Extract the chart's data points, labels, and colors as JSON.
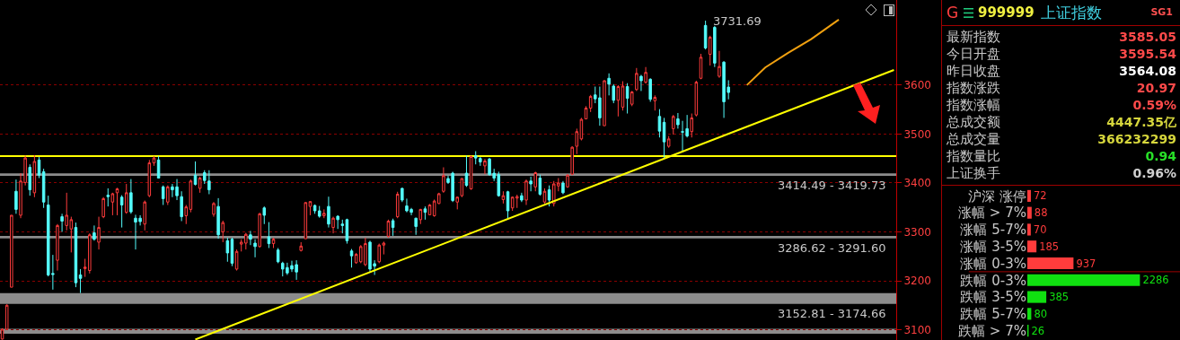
{
  "chart_data": [
    {
      "type": "candlestick",
      "categories": [
        null,
        null,
        null,
        null,
        null,
        null,
        null,
        null,
        null,
        null,
        null,
        null,
        null,
        null,
        null,
        null,
        null,
        null,
        null,
        null,
        null,
        null,
        null,
        null,
        null,
        null,
        null,
        null,
        null,
        null,
        null,
        null,
        null,
        null,
        null,
        null,
        null,
        null,
        null,
        null,
        null,
        null,
        null,
        null,
        null,
        null,
        null,
        null,
        null,
        null,
        null,
        null,
        null,
        null,
        null,
        null,
        null,
        null,
        null,
        null,
        null,
        null,
        null,
        null,
        null,
        null,
        null,
        null,
        null,
        null,
        null,
        null,
        null,
        null,
        null,
        null,
        null,
        null,
        null,
        null,
        null,
        null,
        null,
        null,
        null,
        null,
        null,
        null,
        null,
        null,
        null,
        null,
        null,
        null,
        null,
        null,
        null,
        null,
        null,
        null,
        null,
        null,
        null,
        null,
        null,
        null,
        null,
        null,
        null,
        null,
        null,
        null,
        null,
        null,
        null,
        null,
        null,
        null,
        null,
        null,
        null,
        null,
        null,
        null,
        null,
        null,
        null,
        null,
        null,
        null,
        null,
        null,
        null,
        null,
        null,
        null,
        null,
        null,
        null,
        null,
        null,
        null,
        null,
        null,
        null,
        null,
        null,
        null,
        null,
        null,
        null,
        null,
        null,
        null,
        null,
        null,
        null,
        null,
        null,
        null,
        null,
        null,
        null,
        null,
        null,
        null,
        null,
        null,
        null,
        null,
        null,
        null,
        null,
        null,
        null,
        null,
        null,
        null,
        null,
        null,
        null,
        null,
        null,
        null,
        null,
        null,
        null,
        null,
        null,
        null,
        null,
        null,
        null,
        null,
        null
      ],
      "ohlc": [
        [
          3081,
          3103,
          3080,
          3101
        ],
        [
          3101,
          3152,
          3100,
          3150
        ],
        [
          3187,
          3334,
          3187,
          3334
        ],
        [
          3383,
          3407,
          3337,
          3346
        ],
        [
          3334,
          3420,
          3328,
          3404
        ],
        [
          3401,
          3456,
          3395,
          3451
        ],
        [
          3432,
          3438,
          3374,
          3386
        ],
        [
          3380,
          3457,
          3371,
          3444
        ],
        [
          3447,
          3453,
          3410,
          3416
        ],
        [
          3423,
          3429,
          3349,
          3361
        ],
        [
          3355,
          3374,
          3209,
          3212
        ],
        [
          3215,
          3253,
          3182,
          3213
        ],
        [
          3242,
          3316,
          3221,
          3313
        ],
        [
          3331,
          3337,
          3300,
          3322
        ],
        [
          3313,
          3380,
          3303,
          3334
        ],
        [
          3306,
          3331,
          3258,
          3325
        ],
        [
          3309,
          3319,
          3187,
          3196
        ],
        [
          3212,
          3224,
          3175,
          3205
        ],
        [
          3225,
          3245,
          3208,
          3228
        ],
        [
          3221,
          3297,
          3215,
          3294
        ],
        [
          3298,
          3313,
          3282,
          3285
        ],
        [
          3279,
          3331,
          3264,
          3309
        ],
        [
          3331,
          3371,
          3328,
          3368
        ],
        [
          3375,
          3389,
          3352,
          3372
        ],
        [
          3361,
          3380,
          3334,
          3378
        ],
        [
          3380,
          3390,
          3334,
          3388
        ],
        [
          3371,
          3375,
          3309,
          3355
        ],
        [
          3340,
          3398,
          3337,
          3380
        ],
        [
          3380,
          3408,
          3337,
          3341
        ],
        [
          3328,
          3335,
          3264,
          3320
        ],
        [
          3328,
          3334,
          3313,
          3321
        ],
        [
          3316,
          3364,
          3303,
          3361
        ],
        [
          3374,
          3447,
          3371,
          3441
        ],
        [
          3441,
          3455,
          3435,
          3451
        ],
        [
          3447,
          3455,
          3409,
          3410
        ],
        [
          3392,
          3395,
          3355,
          3368
        ],
        [
          3361,
          3395,
          3355,
          3392
        ],
        [
          3392,
          3398,
          3371,
          3386
        ],
        [
          3392,
          3408,
          3365,
          3374
        ],
        [
          3372,
          3383,
          3322,
          3331
        ],
        [
          3333,
          3355,
          3316,
          3351
        ],
        [
          3346,
          3407,
          3340,
          3404
        ],
        [
          3416,
          3444,
          3395,
          3397
        ],
        [
          3389,
          3413,
          3380,
          3410
        ],
        [
          3421,
          3426,
          3398,
          3405
        ],
        [
          3404,
          3426,
          3377,
          3386
        ],
        [
          3336,
          3361,
          3331,
          3358
        ],
        [
          3352,
          3369,
          3286,
          3294
        ],
        [
          3300,
          3323,
          3279,
          3319
        ],
        [
          3282,
          3288,
          3239,
          3257
        ],
        [
          3285,
          3288,
          3230,
          3236
        ],
        [
          3224,
          3264,
          3221,
          3260
        ],
        [
          3275,
          3285,
          3260,
          3279
        ],
        [
          3277,
          3298,
          3264,
          3295
        ],
        [
          3294,
          3302,
          3273,
          3285
        ],
        [
          3277,
          3285,
          3248,
          3270
        ],
        [
          3270,
          3339,
          3268,
          3337
        ],
        [
          3349,
          3352,
          3316,
          3334
        ],
        [
          3290,
          3320,
          3267,
          3276
        ],
        [
          3276,
          3288,
          3267,
          3285
        ],
        [
          3263,
          3267,
          3236,
          3239
        ],
        [
          3236,
          3239,
          3209,
          3224
        ],
        [
          3227,
          3237,
          3212,
          3216
        ],
        [
          3231,
          3241,
          3218,
          3224
        ],
        [
          3233,
          3242,
          3202,
          3218
        ],
        [
          3262,
          3279,
          3260,
          3271
        ],
        [
          3286,
          3360,
          3286,
          3360
        ],
        [
          3352,
          3362,
          3334,
          3362
        ],
        [
          3354,
          3356,
          3337,
          3343
        ],
        [
          3343,
          3353,
          3329,
          3332
        ],
        [
          3333,
          3346,
          3328,
          3338
        ],
        [
          3352,
          3372,
          3309,
          3316
        ],
        [
          3309,
          3331,
          3297,
          3328
        ],
        [
          3332,
          3334,
          3306,
          3325
        ],
        [
          3316,
          3325,
          3297,
          3313
        ],
        [
          3325,
          3327,
          3276,
          3282
        ],
        [
          3261,
          3265,
          3227,
          3251
        ],
        [
          3237,
          3257,
          3235,
          3254
        ],
        [
          3239,
          3273,
          3236,
          3270
        ],
        [
          3233,
          3288,
          3230,
          3276
        ],
        [
          3279,
          3282,
          3218,
          3224
        ],
        [
          3235,
          3242,
          3212,
          3230
        ],
        [
          3239,
          3276,
          3236,
          3273
        ],
        [
          3273,
          3280,
          3254,
          3277
        ],
        [
          3291,
          3325,
          3288,
          3322
        ],
        [
          3323,
          3327,
          3292,
          3309
        ],
        [
          3331,
          3382,
          3328,
          3377
        ],
        [
          3389,
          3390,
          3361,
          3365
        ],
        [
          3353,
          3368,
          3340,
          3343
        ],
        [
          3346,
          3349,
          3334,
          3340
        ],
        [
          3328,
          3329,
          3294,
          3311
        ],
        [
          3325,
          3347,
          3316,
          3346
        ],
        [
          3347,
          3352,
          3325,
          3340
        ],
        [
          3335,
          3357,
          3334,
          3355
        ],
        [
          3333,
          3366,
          3331,
          3363
        ],
        [
          3358,
          3380,
          3357,
          3378
        ],
        [
          3383,
          3432,
          3380,
          3415
        ],
        [
          3409,
          3415,
          3398,
          3401
        ],
        [
          3420,
          3423,
          3361,
          3364
        ],
        [
          3361,
          3372,
          3346,
          3371
        ],
        [
          3374,
          3410,
          3371,
          3409
        ],
        [
          3420,
          3456,
          3392,
          3395
        ],
        [
          3388,
          3456,
          3386,
          3454
        ],
        [
          3456,
          3465,
          3438,
          3451
        ],
        [
          3450,
          3453,
          3435,
          3443
        ],
        [
          3435,
          3449,
          3418,
          3445
        ],
        [
          3449,
          3451,
          3415,
          3417
        ],
        [
          3420,
          3429,
          3404,
          3410
        ],
        [
          3417,
          3423,
          3372,
          3374
        ],
        [
          3366,
          3383,
          3358,
          3374
        ],
        [
          3382,
          3384,
          3325,
          3343
        ],
        [
          3349,
          3372,
          3343,
          3371
        ],
        [
          3369,
          3376,
          3349,
          3372
        ],
        [
          3374,
          3380,
          3361,
          3365
        ],
        [
          3365,
          3407,
          3355,
          3404
        ],
        [
          3404,
          3413,
          3383,
          3398
        ],
        [
          3392,
          3423,
          3383,
          3421
        ],
        [
          3410,
          3417,
          3374,
          3377
        ],
        [
          3361,
          3389,
          3358,
          3383
        ],
        [
          3386,
          3395,
          3352,
          3365
        ],
        [
          3358,
          3404,
          3352,
          3398
        ],
        [
          3394,
          3410,
          3383,
          3400
        ],
        [
          3400,
          3404,
          3377,
          3380
        ],
        [
          3392,
          3418,
          3390,
          3416
        ],
        [
          3418,
          3475,
          3416,
          3473
        ],
        [
          3475,
          3511,
          3459,
          3505
        ],
        [
          3490,
          3533,
          3487,
          3530
        ],
        [
          3531,
          3557,
          3530,
          3553
        ],
        [
          3553,
          3580,
          3545,
          3577
        ],
        [
          3580,
          3597,
          3563,
          3572
        ],
        [
          3574,
          3597,
          3517,
          3533
        ],
        [
          3517,
          3610,
          3517,
          3609
        ],
        [
          3614,
          3624,
          3579,
          3602
        ],
        [
          3598,
          3602,
          3563,
          3569
        ],
        [
          3569,
          3600,
          3536,
          3597
        ],
        [
          3555,
          3608,
          3548,
          3598
        ],
        [
          3597,
          3604,
          3542,
          3573
        ],
        [
          3561,
          3588,
          3557,
          3586
        ],
        [
          3591,
          3635,
          3588,
          3624
        ],
        [
          3618,
          3621,
          3588,
          3609
        ],
        [
          3606,
          3637,
          3603,
          3626
        ],
        [
          3612,
          3614,
          3566,
          3571
        ],
        [
          3568,
          3579,
          3548,
          3575
        ],
        [
          3536,
          3551,
          3493,
          3506
        ],
        [
          3524,
          3533,
          3450,
          3484
        ],
        [
          3475,
          3496,
          3472,
          3490
        ],
        [
          3511,
          3539,
          3499,
          3536
        ],
        [
          3531,
          3543,
          3511,
          3519
        ],
        [
          3505,
          3527,
          3465,
          3504
        ],
        [
          3511,
          3539,
          3493,
          3496
        ],
        [
          3505,
          3542,
          3493,
          3533
        ],
        [
          3539,
          3609,
          3536,
          3606
        ],
        [
          3614,
          3664,
          3612,
          3657
        ],
        [
          3722,
          3731.69,
          3673,
          3676
        ],
        [
          3663,
          3701,
          3640,
          3698
        ],
        [
          3718,
          3721,
          3637,
          3645
        ],
        [
          3618,
          3670,
          3615,
          3638
        ],
        [
          3647,
          3649,
          3533,
          3566
        ],
        [
          3596,
          3610,
          3571,
          3585
        ],
        null,
        null,
        null,
        null,
        null,
        null,
        null,
        null,
        null,
        null,
        null,
        null,
        null,
        null,
        null,
        null,
        null,
        null,
        null,
        null,
        null,
        null,
        null,
        null,
        null,
        null,
        null,
        null,
        null,
        null,
        null,
        null,
        null,
        null,
        null,
        null
      ],
      "series": [
        {
          "type": "line",
          "color": "#ffff00",
          "values": [
            null,
            null,
            null,
            null,
            null,
            null,
            null,
            null,
            null,
            null,
            null,
            null,
            null,
            null,
            null,
            null,
            null,
            null,
            null,
            null,
            null,
            null,
            null,
            null,
            null,
            null,
            null,
            null,
            null,
            null,
            null,
            null,
            null,
            null,
            null,
            null,
            null,
            null,
            null,
            null,
            null,
            null,
            3080,
            null,
            null,
            null,
            null,
            null,
            null,
            null,
            null,
            null,
            null,
            null,
            null,
            null,
            null,
            null,
            null,
            null,
            null,
            null,
            null,
            null,
            null,
            null,
            null,
            null,
            null,
            null,
            null,
            null,
            null,
            null,
            null,
            null,
            null,
            null,
            null,
            null,
            null,
            null,
            null,
            null,
            null,
            null,
            null,
            null,
            null,
            null,
            null,
            null,
            null,
            null,
            null,
            null,
            null,
            null,
            null,
            null,
            null,
            null,
            null,
            null,
            null,
            null,
            null,
            null,
            null,
            null,
            null,
            null,
            null,
            null,
            null,
            null,
            null,
            null,
            null,
            null,
            null,
            null,
            null,
            null,
            null,
            null,
            null,
            null,
            null,
            null,
            null,
            null,
            null,
            null,
            null,
            null,
            null,
            null,
            null,
            null,
            null,
            null,
            null,
            null,
            null,
            null,
            null,
            null,
            null,
            null,
            null,
            null,
            null,
            null,
            null,
            null,
            null,
            null,
            null,
            null,
            null,
            null,
            null,
            null,
            null,
            null,
            null,
            null,
            null,
            null,
            null,
            null,
            null,
            null,
            null,
            null,
            null,
            null,
            null,
            null,
            null,
            null,
            null,
            null,
            null,
            null,
            null,
            null,
            null,
            null,
            null,
            null,
            null,
            null,
            3631
          ]
        },
        {
          "type": "line",
          "color": "#f0a010",
          "values": [
            null,
            null,
            null,
            null,
            null,
            null,
            null,
            null,
            null,
            null,
            null,
            null,
            null,
            null,
            null,
            null,
            null,
            null,
            null,
            null,
            null,
            null,
            null,
            null,
            null,
            null,
            null,
            null,
            null,
            null,
            null,
            null,
            null,
            null,
            null,
            null,
            null,
            null,
            null,
            null,
            null,
            null,
            null,
            null,
            null,
            null,
            null,
            null,
            null,
            null,
            null,
            null,
            null,
            null,
            null,
            null,
            null,
            null,
            null,
            null,
            null,
            null,
            null,
            null,
            null,
            null,
            null,
            null,
            null,
            null,
            null,
            null,
            null,
            null,
            null,
            null,
            null,
            null,
            null,
            null,
            null,
            null,
            null,
            null,
            null,
            null,
            null,
            null,
            null,
            null,
            null,
            null,
            null,
            null,
            null,
            null,
            null,
            null,
            null,
            null,
            null,
            null,
            null,
            null,
            null,
            null,
            null,
            null,
            null,
            null,
            null,
            null,
            null,
            null,
            null,
            null,
            null,
            null,
            null,
            null,
            null,
            null,
            null,
            null,
            null,
            null,
            null,
            null,
            null,
            null,
            null,
            null,
            null,
            null,
            null,
            null,
            null,
            null,
            null,
            null,
            null,
            null,
            null,
            null,
            null,
            null,
            null,
            null,
            null,
            null,
            null,
            null,
            null,
            null,
            null,
            null,
            null,
            null,
            null,
            null,
            null,
            null,
            3600,
            null,
            null,
            null,
            3636,
            null,
            null,
            null,
            null,
            3666,
            null,
            null,
            null,
            null,
            3694,
            null,
            null,
            null,
            null,
            null,
            3734,
            null,
            null,
            null,
            null,
            null,
            null,
            null,
            null,
            null,
            null,
            null,
            null
          ]
        }
      ],
      "ylim": [
        3079,
        3774
      ],
      "yticks": [
        3100,
        3200,
        3300,
        3400,
        3500,
        3600
      ],
      "grid": "y",
      "tick_labels": "y",
      "ref_lines": [
        {
          "axis": "y",
          "value": 3455,
          "color": "#ffff00"
        }
      ],
      "bands": [
        {
          "axis": "y",
          "from": 3152.81,
          "to": 3174.66,
          "label": "3152.81 - 3174.66",
          "color": "#8c8c8c"
        },
        {
          "axis": "y",
          "from": 3286.62,
          "to": 3291.6,
          "label": "3286.62 - 3291.60",
          "color": "#8c8c8c"
        },
        {
          "axis": "y",
          "from": 3414.49,
          "to": 3419.73,
          "label": "3414.49 - 3419.73",
          "color": "#8c8c8c"
        },
        {
          "axis": "y",
          "from": 3092,
          "to": 3102,
          "color": "#8c8c8c"
        }
      ],
      "annotations": [
        "3731.69"
      ]
    },
    {
      "type": "other",
      "title": "999999",
      "subtitle": "上证指数",
      "annotations": [
        "G",
        "SG1",
        "最新指数",
        "3585.05",
        "今日开盘",
        "3595.54",
        "昨日收盘",
        "3564.08",
        "指数涨跌",
        "20.97",
        "指数涨幅",
        "0.59%",
        "总成交额",
        "4447.35亿",
        "总成交量",
        "366232299",
        "指数量比",
        "0.94",
        "上证换手",
        "0.96%"
      ],
      "colors": [
        "#ff4040",
        "#ff5050",
        "#c8c8c8",
        "#ff4a4a",
        "#c8c8c8",
        "#ff4a4a",
        "#c8c8c8",
        "#ffffff",
        "#c8c8c8",
        "#ff4a4a",
        "#c8c8c8",
        "#ff4a4a",
        "#c8c8c8",
        "#d6d63c",
        "#c8c8c8",
        "#d6d63c",
        "#c8c8c8",
        "#28e028",
        "#c8c8c8",
        "#d0d0d0"
      ]
    },
    {
      "type": "bar",
      "orientation": "horizontal",
      "data_labels": true,
      "tick_labels": "y",
      "categories": [
        "沪深 涨停",
        "涨幅 > 7%",
        "涨幅 5-7%",
        "涨幅 3-5%",
        "涨幅 0-3%",
        "跌幅 0-3%",
        "跌幅 3-5%",
        "跌幅 5-7%",
        "跌幅 > 7%"
      ],
      "values": [
        72,
        88,
        70,
        185,
        937,
        2286,
        385,
        80,
        26
      ],
      "colors": [
        "#ff3c3c",
        "#ff3c3c",
        "#ff3c3c",
        "#ff3c3c",
        "#ff3c3c",
        "#10e010",
        "#10e010",
        "#10e010",
        "#10e010"
      ]
    }
  ]
}
